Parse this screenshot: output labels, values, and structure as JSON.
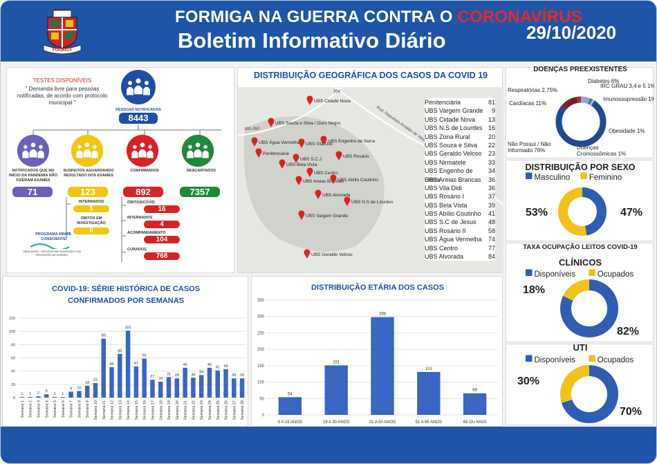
{
  "header": {
    "title_prefix": "FORMIGA NA GUERRA CONTRA O",
    "title_highlight": "CORONAVÍRUS",
    "subtitle": "Boletim Informativo Diário",
    "date": "29/10/2020",
    "crest_text": "FORMIGA"
  },
  "tests": {
    "title": "TESTES DISPONÍVEIS",
    "note": "\" Demanda livre para pessoas notificadas, de acordo com protocolo municipal \""
  },
  "notified": {
    "label": "PESSOAS NOTIFICADAS",
    "value": "8443"
  },
  "categories": [
    {
      "label": "NOTIFICADOS QUE NO INÍCIO DA PANDEMIA NÃO FIZERAM EXAMES",
      "value": "71",
      "color": "#6a62b8"
    },
    {
      "label": "SUSPEITOS AGUARDANDO RESULTADO DOS EXAMES",
      "value": "123",
      "color": "#f2c612"
    },
    {
      "label": "CONFIRMADOS",
      "value": "892",
      "color": "#d92323"
    },
    {
      "label": "DESCARTADOS",
      "value": "7357",
      "color": "#1f8a3a"
    }
  ],
  "suspects_sub": [
    {
      "label": "INTERNADOS",
      "value": "1"
    },
    {
      "label": "ÓBITOS EM INVESTIGAÇÃO",
      "value": "0"
    }
  ],
  "confirmed_sub": [
    {
      "label": "ÓBITOS/COVID",
      "value": "16"
    },
    {
      "label": "INTERNADOS",
      "value": "4"
    },
    {
      "label": "ACOMPANHAMENTO",
      "value": "104"
    },
    {
      "label": "CURADOS",
      "value": "768"
    }
  ],
  "program": {
    "title": "PROGRAMA MINAS CONSCIENTE",
    "caption": "ONDA VERDE - SERVIÇOS NÃO ESSENCIAIS COM RESTRIÇÕES DE HORÁRIO"
  },
  "map": {
    "title": "DISTRIBUIÇÃO GEOGRÁFICA DOS CASOS DA COVID 19",
    "road_labels": [
      "354",
      "MG-050",
      "Rod. Deputado Arnaldo de Vasconcelos"
    ],
    "pins": [
      "UBS Cidade Nova",
      "UBS Souza e Silva / Ouro Negro",
      "UBS Água Vermelha",
      "UBS Vila Didi",
      "UBS Engenho de Serra",
      "Penitenciária",
      "UBS S.C.J",
      "UBS Rosário",
      "UBS Bela Vista",
      "UBS Centro",
      "UBS Areias Brancas",
      "UBS Abílio Coutinho",
      "UBS Alvorada",
      "UBS N.S de Lourdes",
      "UBS Vargem Grande",
      "UBS Geraldo Veloso"
    ],
    "table": [
      [
        "Penitenciária",
        "81"
      ],
      [
        "UBS Vargem Grande",
        "9"
      ],
      [
        "UBS Cidade Nova",
        "13"
      ],
      [
        "UBS N.S de Lourdes",
        "16"
      ],
      [
        "UBS Zona Rural",
        "20"
      ],
      [
        "UBS Souza e Silva",
        "22"
      ],
      [
        "UBS Geraldo Veloso",
        "23"
      ],
      [
        "UBS Nirmatele",
        "33"
      ],
      [
        "UBS Engenho de Serra",
        "34"
      ],
      [
        "UBS Areias Brancas",
        "36"
      ],
      [
        "UBS Vila Didi",
        "36"
      ],
      [
        "UBS Rosário I",
        "37"
      ],
      [
        "UBS Bela Vista",
        "39"
      ],
      [
        "UBS Abílio Coutinho",
        "41"
      ],
      [
        "UBS S.C de Jesus",
        "48"
      ],
      [
        "UBS Rosário II",
        "58"
      ],
      [
        "UBS Água Vermelha",
        "74"
      ],
      [
        "UBS Centro",
        "77"
      ],
      [
        "UBS Alvorada",
        "84"
      ]
    ]
  },
  "chart_data": [
    {
      "type": "bar",
      "title": "COVID-19: SÉRIE HISTÓRICA DE CASOS CONFIRMADOS POR SEMANAS",
      "categories": [
        "Semana 1",
        "Semana 2",
        "Semana 3",
        "Semana 4",
        "Semana 5",
        "Semana 6",
        "Semana 7",
        "Semana 8",
        "Semana 9",
        "Semana 10",
        "Semana 11",
        "Semana 12",
        "Semana 13",
        "Semana 14",
        "Semana 15",
        "Semana 16",
        "Semana 17",
        "Semana 18",
        "Semana 19",
        "Semana 20",
        "Semana 21",
        "Semana 22",
        "Semana 23",
        "Semana 24",
        "Semana 25",
        "Semana 26",
        "Semana 27",
        "Semana 28"
      ],
      "values": [
        1,
        1,
        2,
        5,
        1,
        1,
        9,
        10,
        18,
        22,
        89,
        46,
        66,
        101,
        47,
        59,
        27,
        24,
        31,
        29,
        45,
        30,
        34,
        45,
        41,
        43,
        29,
        29
      ],
      "ylim": [
        0,
        120
      ],
      "yticks": [
        0,
        20,
        40,
        60,
        80,
        100,
        120
      ],
      "color": "#3a66c4"
    },
    {
      "type": "bar",
      "title": "DISTRIBUIÇÃO ETÁRIA DOS CASOS",
      "categories": [
        "0 A 18 ANOS",
        "19 A 30 ANOS",
        "31 A 50 ANOS",
        "51 A 65 ANOS",
        "66 OU MAIS"
      ],
      "values": [
        54,
        151,
        298,
        131,
        66
      ],
      "ylim": [
        0,
        350
      ],
      "yticks": [
        0,
        50,
        100,
        150,
        200,
        250,
        300,
        350
      ],
      "color": "#3a66c4"
    },
    {
      "type": "pie",
      "title": "DOENÇAS PREEXISTENTES",
      "labels": [
        "Diabetes",
        "IRC GRAU 3,4 e 5",
        "Imunossupressão",
        "Obesidade",
        "Doenças Cromossômicas",
        "Não Possui / Não Informado",
        "Cardíacas",
        "Respiratórias"
      ],
      "values": [
        6,
        1,
        1,
        1,
        1,
        76,
        11,
        2.75
      ],
      "display": [
        "Diabetes 6%",
        "IRC GRAU 3,4 e 5 1%",
        "Imunossupressão 1%",
        "Obesidade 1%",
        "Doenças Cromossômicas 1%",
        "Não Possui / Não Informado 76%",
        "Cardíacas 11%",
        "Respiratórias 2,75%"
      ],
      "colors": [
        "#9aa7c7",
        "#3a5aa0",
        "#6a84c0",
        "#b7c3df",
        "#2f4a86",
        "#1f4c8f",
        "#7a2020",
        "#b52a2a"
      ]
    },
    {
      "type": "pie",
      "title": "DISTRIBUIÇÃO POR SEXO",
      "labels": [
        "Masculino",
        "Feminino"
      ],
      "values": [
        47,
        53
      ],
      "display": [
        "47%",
        "53%"
      ],
      "colors": [
        "#2f5db3",
        "#f2c21b"
      ]
    },
    {
      "type": "pie",
      "title": "CLÍNICOS",
      "labels": [
        "Disponíveis",
        "Ocupados"
      ],
      "values": [
        82,
        18
      ],
      "display": [
        "82%",
        "18%"
      ],
      "colors": [
        "#2f5db3",
        "#f2c21b"
      ]
    },
    {
      "type": "pie",
      "title": "UTI",
      "labels": [
        "Disponíveis",
        "Ocupados"
      ],
      "values": [
        70,
        30
      ],
      "display": [
        "70%",
        "30%"
      ],
      "colors": [
        "#2f5db3",
        "#f2c21b"
      ]
    }
  ],
  "occupancy_title": "TAXA OCUPAÇÃO LEITOS COVID-19"
}
